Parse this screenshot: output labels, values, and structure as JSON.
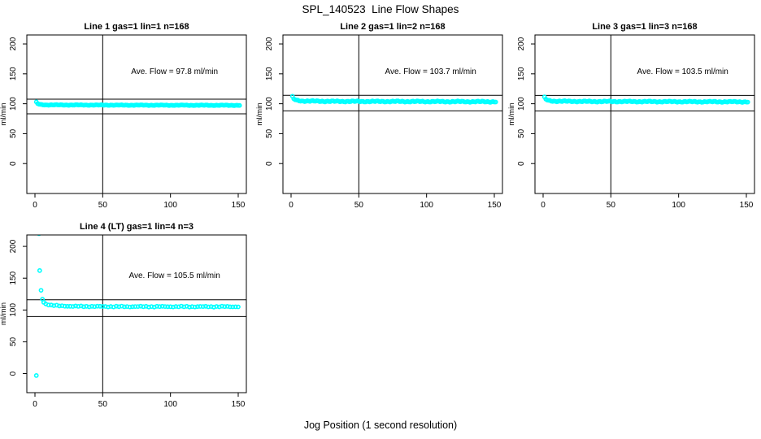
{
  "page": {
    "title": "SPL_140523  Line Flow Shapes",
    "x_axis_label": "Jog Position (1 second resolution)"
  },
  "chart_data": {
    "type": "scatter",
    "title": "SPL_140523  Line Flow Shapes",
    "xlabel": "Jog Position (1 second resolution)",
    "ylabel": "ml/min",
    "point_color": "#00FFFF",
    "line_color": "#000000",
    "grid": "off",
    "legend": "none",
    "x_ticks": [
      0,
      50,
      100,
      150
    ],
    "y_ticks": [
      0,
      50,
      100,
      150,
      200
    ],
    "xlim": [
      -6,
      156
    ],
    "annotation_pos": {
      "x": 103,
      "y": 150
    },
    "panels": [
      {
        "title": "Line 1 gas=1 lin=1 n=168",
        "line": 1,
        "gas": 1,
        "lin": 1,
        "n": 168,
        "ave_flow": 97.8,
        "annotation": "Ave. Flow =  97.8  ml/min",
        "limit_upper": 107.6,
        "limit_lower": 83.1,
        "vline_x": 50,
        "ylim": [
          -50,
          215
        ],
        "head_points": [],
        "anchors": [
          [
            1,
            102.5
          ],
          [
            2,
            100.2
          ],
          [
            4,
            98.6
          ],
          [
            8,
            98.1
          ],
          [
            60,
            97.7
          ],
          [
            151,
            97.4
          ]
        ],
        "step": 1,
        "wobble": 0.6
      },
      {
        "title": "Line 2 gas=1 lin=2 n=168",
        "line": 2,
        "gas": 1,
        "lin": 2,
        "n": 168,
        "ave_flow": 103.7,
        "annotation": "Ave. Flow =  103.7  ml/min",
        "limit_upper": 114.1,
        "limit_lower": 88.1,
        "vline_x": 50,
        "ylim": [
          -50,
          215
        ],
        "head_points": [],
        "anchors": [
          [
            1,
            111.5
          ],
          [
            2,
            108.0
          ],
          [
            4,
            105.8
          ],
          [
            8,
            104.6
          ],
          [
            30,
            104.0
          ],
          [
            151,
            103.4
          ]
        ],
        "step": 1,
        "wobble": 1.1
      },
      {
        "title": "Line 3 gas=1 lin=3 n=168",
        "line": 3,
        "gas": 1,
        "lin": 3,
        "n": 168,
        "ave_flow": 103.5,
        "annotation": "Ave. Flow =  103.5  ml/min",
        "limit_upper": 113.9,
        "limit_lower": 88.0,
        "vline_x": 50,
        "ylim": [
          -50,
          215
        ],
        "head_points": [],
        "anchors": [
          [
            1,
            110.5
          ],
          [
            2,
            107.5
          ],
          [
            4,
            105.3
          ],
          [
            8,
            104.3
          ],
          [
            30,
            103.8
          ],
          [
            151,
            103.2
          ]
        ],
        "step": 1,
        "wobble": 1.0
      },
      {
        "title": "Line 4 (LT) gas=1 lin=4 n=3",
        "line": 4,
        "gas": 1,
        "lin": 4,
        "n": 3,
        "ave_flow": 105.5,
        "annotation": "Ave. Flow =  105.5  ml/min",
        "limit_upper": 116.1,
        "limit_lower": 89.7,
        "vline_x": 50,
        "ylim": [
          -30,
          218
        ],
        "head_points": [
          [
            1,
            -3
          ],
          [
            3,
            220
          ],
          [
            3.5,
            162
          ],
          [
            4.5,
            131
          ],
          [
            5.5,
            117
          ],
          [
            6.5,
            112
          ]
        ],
        "anchors": [
          [
            8,
            109.5
          ],
          [
            12,
            107.5
          ],
          [
            18,
            106.4
          ],
          [
            30,
            105.7
          ],
          [
            60,
            105.3
          ],
          [
            151,
            105.2
          ]
        ],
        "step": 2,
        "wobble": 0.8
      }
    ]
  }
}
